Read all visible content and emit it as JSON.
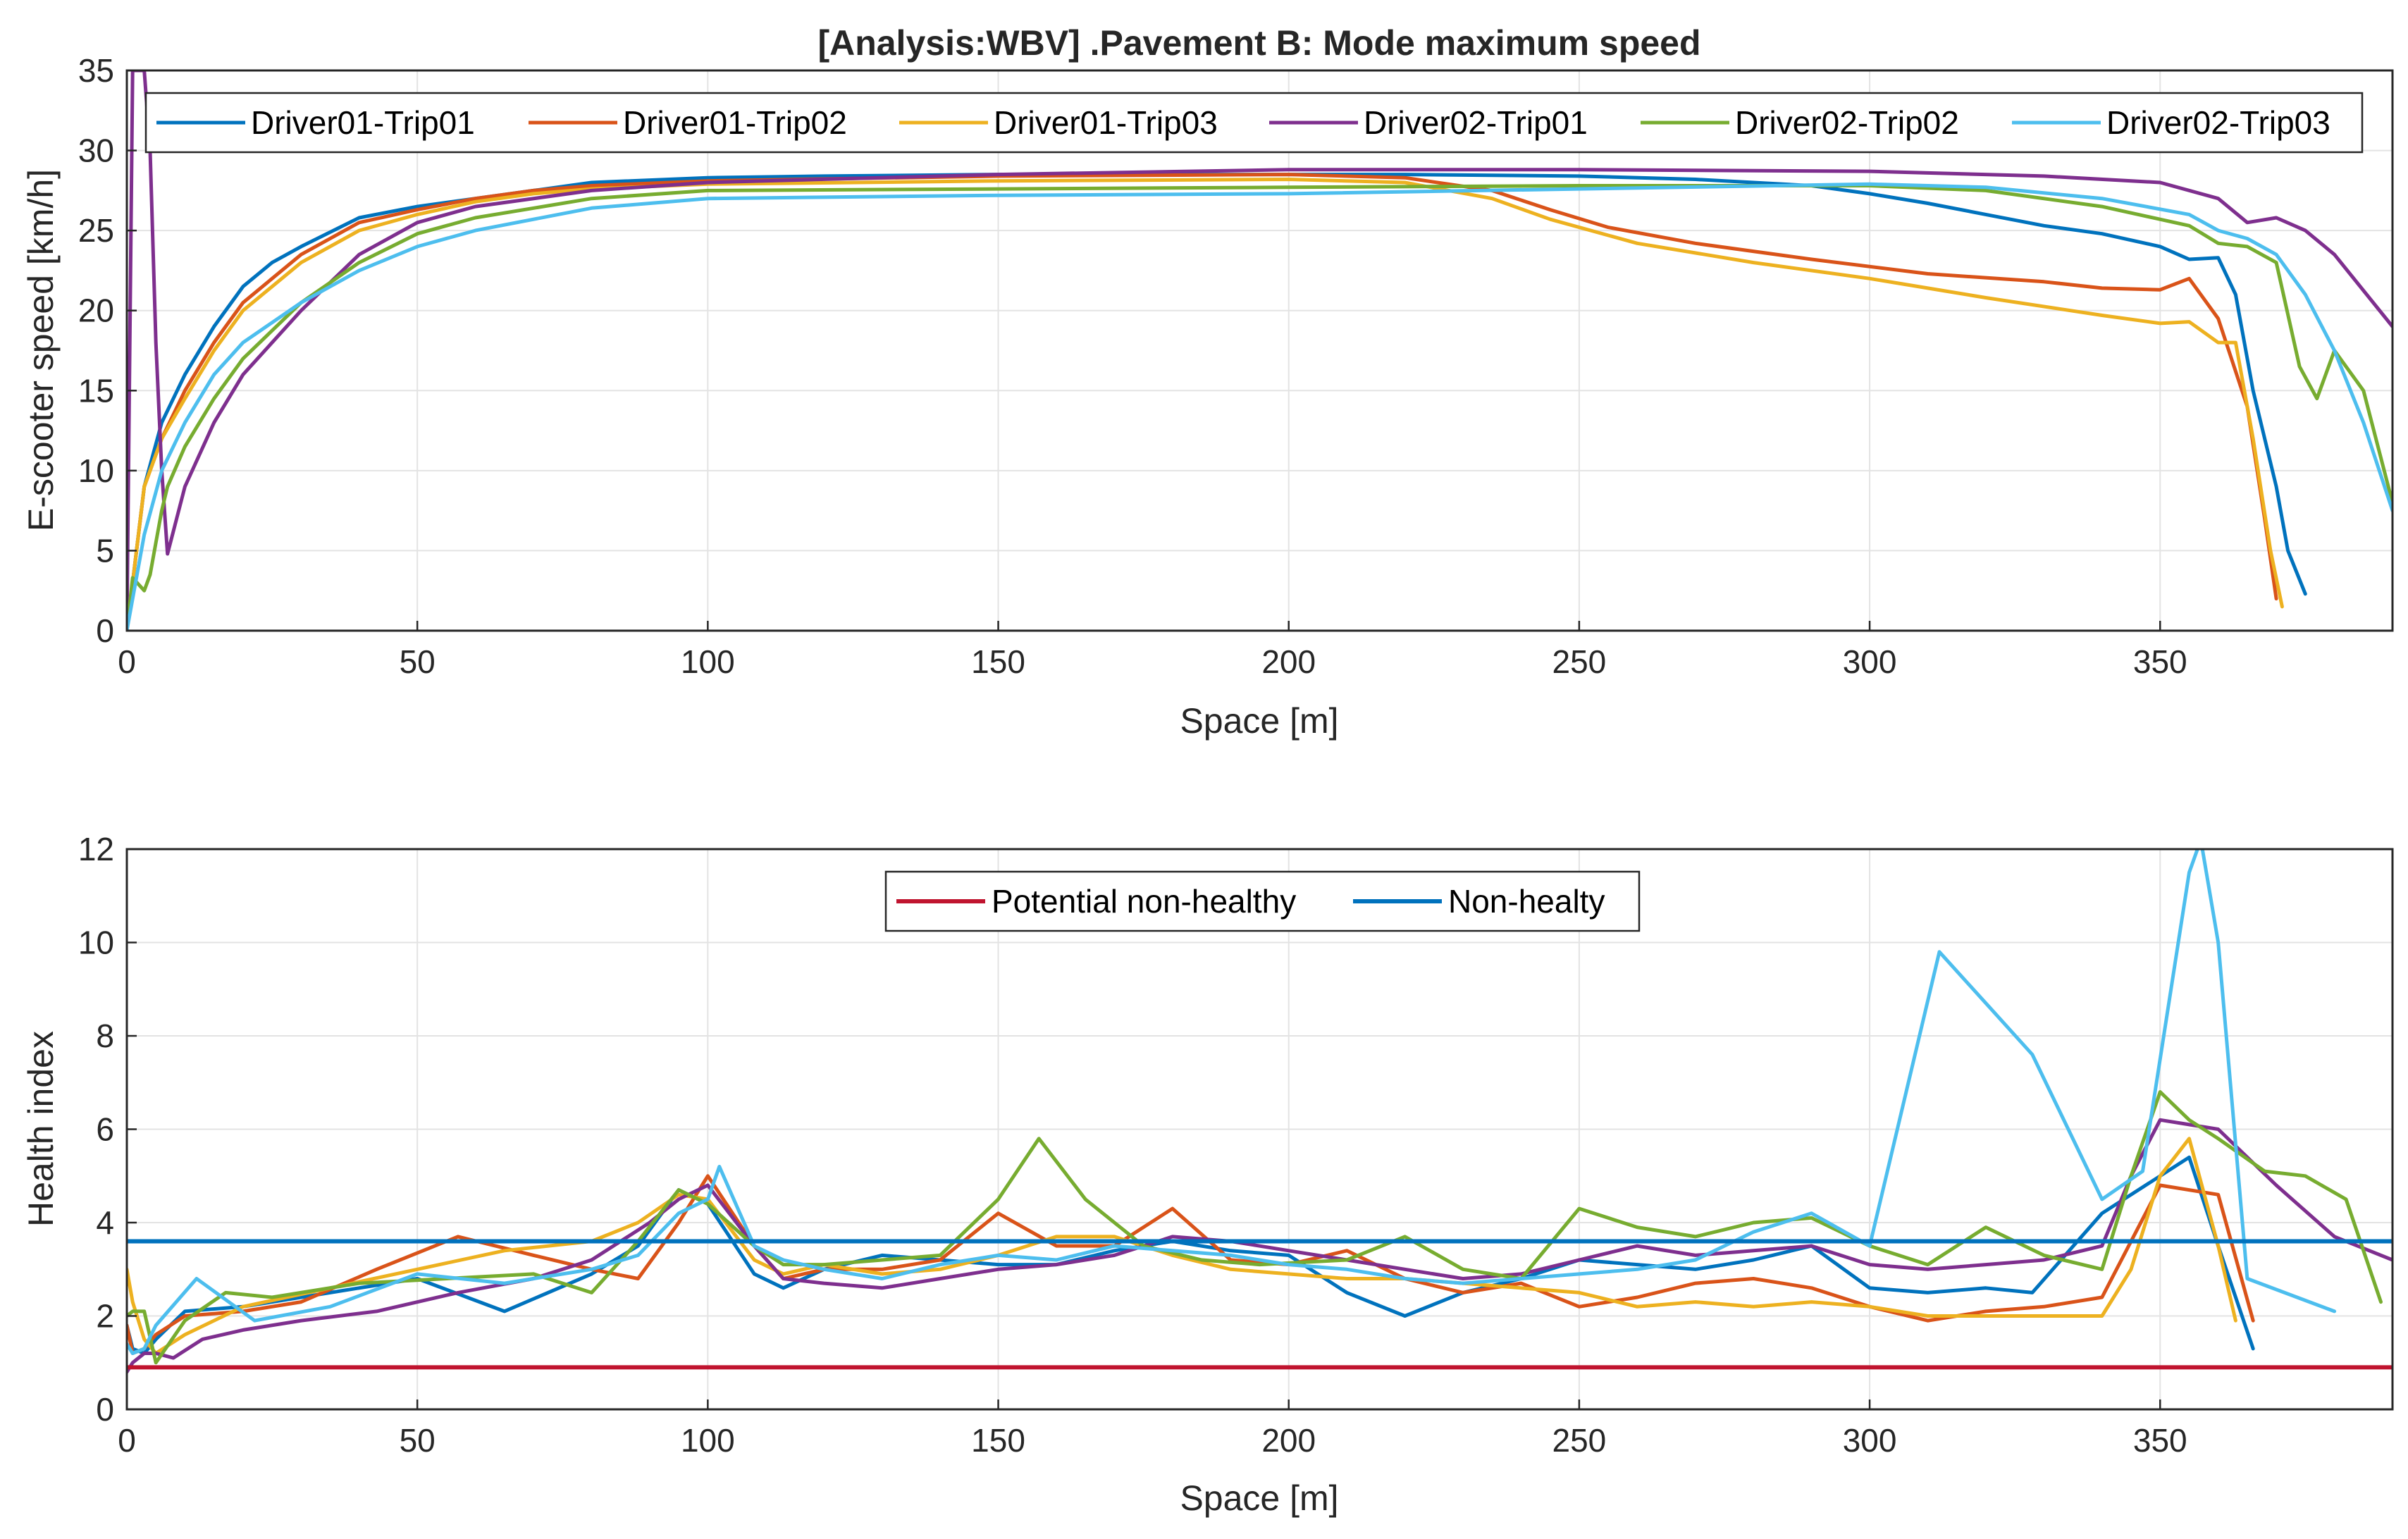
{
  "chart_data": [
    {
      "type": "line",
      "title": "[Analysis:WBV] .Pavement B: Mode maximum speed",
      "xlabel": "Space [m]",
      "ylabel": "E-scooter speed [km/h]",
      "xlim": [
        0,
        390
      ],
      "ylim": [
        0,
        35
      ],
      "xticks": [
        0,
        50,
        100,
        150,
        200,
        250,
        300,
        350
      ],
      "yticks": [
        0,
        5,
        10,
        15,
        20,
        25,
        30,
        35
      ],
      "grid": true,
      "legend_position": "top, horizontal",
      "series": [
        {
          "name": "Driver01-Trip01",
          "color": "#0072BD",
          "x": [
            0,
            3,
            6,
            10,
            15,
            20,
            25,
            30,
            40,
            50,
            60,
            70,
            80,
            100,
            120,
            150,
            180,
            200,
            220,
            250,
            270,
            290,
            300,
            310,
            320,
            330,
            340,
            350,
            355,
            360,
            363,
            366,
            370,
            372,
            375
          ],
          "y": [
            0,
            9,
            13,
            16,
            19,
            21.5,
            23,
            24,
            25.8,
            26.5,
            27,
            27.5,
            28,
            28.3,
            28.4,
            28.5,
            28.5,
            28.5,
            28.5,
            28.4,
            28.2,
            27.8,
            27.3,
            26.7,
            26,
            25.3,
            24.8,
            24,
            23.2,
            23.3,
            21,
            15,
            9,
            5,
            2.3
          ]
        },
        {
          "name": "Driver01-Trip02",
          "color": "#D95319",
          "x": [
            0,
            3,
            6,
            10,
            15,
            20,
            30,
            40,
            50,
            60,
            70,
            80,
            100,
            150,
            200,
            220,
            235,
            245,
            255,
            270,
            290,
            310,
            330,
            340,
            350,
            355,
            360,
            365,
            368,
            370
          ],
          "y": [
            0,
            9,
            12,
            15,
            18,
            20.5,
            23.5,
            25.5,
            26.3,
            27,
            27.5,
            27.8,
            28.1,
            28.4,
            28.5,
            28.3,
            27.5,
            26.3,
            25.2,
            24.2,
            23.2,
            22.3,
            21.8,
            21.4,
            21.3,
            22,
            19.5,
            14,
            7,
            2
          ]
        },
        {
          "name": "Driver01-Trip03",
          "color": "#EDB120",
          "x": [
            0,
            3,
            6,
            10,
            15,
            20,
            30,
            40,
            50,
            60,
            70,
            80,
            100,
            150,
            200,
            220,
            235,
            245,
            260,
            280,
            300,
            320,
            340,
            350,
            355,
            360,
            363,
            366,
            369,
            371
          ],
          "y": [
            0,
            9,
            12,
            14.5,
            17.5,
            20,
            23,
            25,
            26,
            26.8,
            27.3,
            27.6,
            27.9,
            28.1,
            28.2,
            28,
            27,
            25.7,
            24.2,
            23,
            22,
            20.8,
            19.7,
            19.2,
            19.3,
            18,
            18,
            12,
            5,
            1.5
          ]
        },
        {
          "name": "Driver02-Trip01",
          "color": "#7E2F8E",
          "x": [
            0,
            1,
            3,
            4,
            5,
            6,
            7,
            10,
            15,
            20,
            30,
            40,
            50,
            60,
            80,
            100,
            150,
            200,
            250,
            300,
            330,
            350,
            360,
            365,
            370,
            375,
            380,
            390
          ],
          "y": [
            0,
            35,
            35,
            30,
            18,
            10,
            4.8,
            9,
            13,
            16,
            20,
            23.5,
            25.5,
            26.5,
            27.5,
            28,
            28.5,
            28.8,
            28.8,
            28.7,
            28.4,
            28,
            27,
            25.5,
            25.8,
            25,
            23.5,
            19
          ]
        },
        {
          "name": "Driver02-Trip02",
          "color": "#77AC30",
          "x": [
            0,
            1,
            3,
            4,
            5,
            6,
            7,
            10,
            15,
            20,
            30,
            40,
            50,
            60,
            80,
            100,
            150,
            200,
            250,
            300,
            320,
            340,
            355,
            360,
            365,
            370,
            374,
            377,
            380,
            385,
            390
          ],
          "y": [
            0,
            3.3,
            2.5,
            3.5,
            5.5,
            7.5,
            9,
            11.5,
            14.5,
            17,
            20.5,
            23,
            24.8,
            25.8,
            27,
            27.5,
            27.6,
            27.7,
            27.8,
            27.8,
            27.5,
            26.5,
            25.3,
            24.2,
            24,
            23,
            16.5,
            14.5,
            17.5,
            15,
            8
          ]
        },
        {
          "name": "Driver02-Trip03",
          "color": "#4DBEEE",
          "x": [
            0,
            3,
            6,
            10,
            15,
            20,
            30,
            40,
            50,
            60,
            80,
            100,
            150,
            200,
            250,
            300,
            320,
            340,
            355,
            360,
            365,
            370,
            375,
            380,
            385,
            390
          ],
          "y": [
            0,
            6,
            10,
            13,
            16,
            18,
            20.5,
            22.5,
            24,
            25,
            26.4,
            27,
            27.2,
            27.3,
            27.6,
            27.9,
            27.7,
            27,
            26,
            25,
            24.5,
            23.5,
            21,
            17.5,
            13,
            7.5
          ]
        }
      ]
    },
    {
      "type": "line",
      "xlabel": "Space [m]",
      "ylabel": "Health index",
      "xlim": [
        0,
        390
      ],
      "ylim": [
        0,
        12
      ],
      "xticks": [
        0,
        50,
        100,
        150,
        200,
        250,
        300,
        350
      ],
      "yticks": [
        0,
        2,
        4,
        6,
        8,
        10,
        12
      ],
      "grid": true,
      "legend_position": "top-center",
      "series": [
        {
          "name": "Potential non-healthy",
          "color": "#C0142F",
          "x": [
            0,
            390
          ],
          "y": [
            0.9,
            0.9
          ]
        },
        {
          "name": "Non-healty",
          "color": "#0072BD",
          "x": [
            0,
            390
          ],
          "y": [
            3.6,
            3.6
          ]
        },
        {
          "color": "#0072BD",
          "x": [
            0,
            1,
            3,
            5,
            10,
            20,
            35,
            50,
            65,
            80,
            88,
            95,
            100,
            108,
            113,
            120,
            130,
            140,
            150,
            160,
            170,
            180,
            190,
            200,
            210,
            220,
            230,
            240,
            250,
            260,
            270,
            280,
            290,
            300,
            310,
            320,
            328,
            340,
            350,
            355,
            360,
            366
          ],
          "y": [
            1.8,
            1.3,
            1.2,
            1.5,
            2.1,
            2.2,
            2.5,
            2.8,
            2.1,
            2.9,
            3.5,
            4.7,
            4.4,
            2.9,
            2.6,
            3,
            3.3,
            3.2,
            3.1,
            3.1,
            3.4,
            3.6,
            3.4,
            3.3,
            2.5,
            2,
            2.5,
            2.8,
            3.2,
            3.1,
            3,
            3.2,
            3.5,
            2.6,
            2.5,
            2.6,
            2.5,
            4.2,
            5,
            5.4,
            3.5,
            1.3
          ]
        },
        {
          "color": "#D95319",
          "x": [
            0,
            1,
            3,
            5,
            10,
            20,
            30,
            43,
            57,
            70,
            80,
            88,
            95,
            100,
            108,
            113,
            120,
            130,
            140,
            150,
            160,
            170,
            180,
            190,
            200,
            210,
            220,
            230,
            240,
            250,
            260,
            270,
            280,
            290,
            300,
            310,
            320,
            330,
            340,
            350,
            360,
            366
          ],
          "y": [
            1.8,
            1.2,
            1.3,
            1.6,
            2,
            2.1,
            2.3,
            3,
            3.7,
            3.3,
            3,
            2.8,
            4,
            5,
            3.5,
            2.8,
            3,
            3,
            3.2,
            4.2,
            3.5,
            3.5,
            4.3,
            3.2,
            3.1,
            3.4,
            2.8,
            2.5,
            2.7,
            2.2,
            2.4,
            2.7,
            2.8,
            2.6,
            2.2,
            1.9,
            2.1,
            2.2,
            2.4,
            4.8,
            4.6,
            1.9
          ]
        },
        {
          "color": "#EDB120",
          "x": [
            0,
            1,
            3,
            5,
            10,
            20,
            35,
            50,
            65,
            80,
            88,
            95,
            100,
            108,
            113,
            120,
            130,
            140,
            150,
            160,
            170,
            180,
            190,
            200,
            210,
            220,
            230,
            240,
            250,
            260,
            270,
            280,
            290,
            300,
            310,
            320,
            330,
            340,
            345,
            350,
            355,
            360,
            363
          ],
          "y": [
            3,
            2.3,
            1.5,
            1.2,
            1.6,
            2.2,
            2.6,
            3,
            3.4,
            3.6,
            4,
            4.6,
            4.5,
            3.2,
            2.9,
            3.1,
            2.9,
            3,
            3.3,
            3.7,
            3.7,
            3.3,
            3,
            2.9,
            2.8,
            2.8,
            2.7,
            2.6,
            2.5,
            2.2,
            2.3,
            2.2,
            2.3,
            2.2,
            2,
            2,
            2,
            2,
            3,
            5,
            5.8,
            3.5,
            1.9
          ]
        },
        {
          "color": "#7E2F8E",
          "x": [
            0,
            1,
            3,
            5,
            8,
            13,
            20,
            30,
            43,
            57,
            70,
            80,
            90,
            95,
            100,
            108,
            113,
            120,
            130,
            140,
            150,
            160,
            170,
            180,
            190,
            200,
            210,
            220,
            230,
            240,
            250,
            260,
            270,
            280,
            290,
            300,
            310,
            320,
            330,
            340,
            345,
            350,
            355,
            360,
            370,
            380,
            390
          ],
          "y": [
            0.8,
            1,
            1.2,
            1.2,
            1.1,
            1.5,
            1.7,
            1.9,
            2.1,
            2.5,
            2.8,
            3.2,
            4,
            4.5,
            4.8,
            3.5,
            2.8,
            2.7,
            2.6,
            2.8,
            3,
            3.1,
            3.3,
            3.7,
            3.6,
            3.4,
            3.2,
            3,
            2.8,
            2.9,
            3.2,
            3.5,
            3.3,
            3.4,
            3.5,
            3.1,
            3,
            3.1,
            3.2,
            3.5,
            5,
            6.2,
            6.1,
            6,
            4.8,
            3.7,
            3.2
          ]
        },
        {
          "color": "#77AC30",
          "x": [
            0,
            1,
            3,
            5,
            10,
            17,
            25,
            40,
            55,
            70,
            80,
            88,
            95,
            100,
            108,
            113,
            120,
            130,
            140,
            150,
            157,
            165,
            175,
            185,
            195,
            210,
            220,
            230,
            240,
            250,
            260,
            270,
            280,
            290,
            300,
            310,
            320,
            330,
            340,
            345,
            350,
            355,
            360,
            368,
            375,
            382,
            388
          ],
          "y": [
            2,
            2.1,
            2.1,
            1,
            1.9,
            2.5,
            2.4,
            2.7,
            2.8,
            2.9,
            2.5,
            3.6,
            4.7,
            4.4,
            3.5,
            3.1,
            3.1,
            3.2,
            3.3,
            4.5,
            5.8,
            4.5,
            3.5,
            3.2,
            3.1,
            3.2,
            3.7,
            3,
            2.8,
            4.3,
            3.9,
            3.7,
            4,
            4.1,
            3.5,
            3.1,
            3.9,
            3.3,
            3,
            5,
            6.8,
            6.2,
            5.8,
            5.1,
            5,
            4.5,
            2.3
          ]
        },
        {
          "color": "#4DBEEE",
          "x": [
            0,
            1,
            3,
            5,
            12,
            22,
            35,
            50,
            65,
            80,
            88,
            95,
            100,
            102,
            108,
            113,
            120,
            130,
            140,
            150,
            160,
            170,
            180,
            190,
            200,
            210,
            220,
            230,
            240,
            250,
            260,
            270,
            280,
            290,
            300,
            312,
            320,
            328,
            340,
            347,
            355,
            357,
            360,
            365,
            380
          ],
          "y": [
            1.4,
            1.2,
            1.3,
            1.8,
            2.8,
            1.9,
            2.2,
            2.9,
            2.7,
            3,
            3.3,
            4.2,
            4.5,
            5.2,
            3.5,
            3.2,
            3,
            2.8,
            3.1,
            3.3,
            3.2,
            3.5,
            3.4,
            3.3,
            3.1,
            3,
            2.8,
            2.7,
            2.8,
            2.9,
            3,
            3.2,
            3.8,
            4.2,
            3.5,
            9.8,
            8.7,
            7.6,
            4.5,
            5.1,
            11.5,
            12.2,
            10,
            2.8,
            2.1
          ]
        }
      ]
    }
  ]
}
